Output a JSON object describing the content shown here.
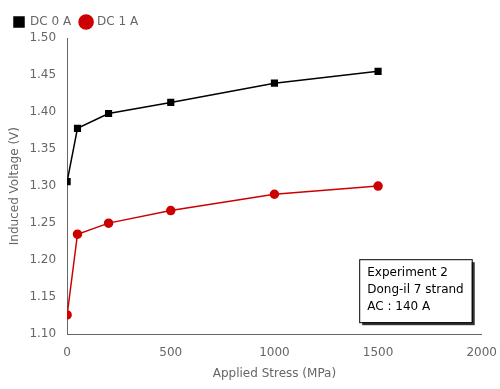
{
  "chart_data": {
    "type": "line",
    "x_label": "Applied Stress (MPa)",
    "y_label": "Induced Voltage (V)",
    "x": [
      0,
      50,
      200,
      500,
      1000,
      1500
    ],
    "series": [
      {
        "name": "DC 0 A",
        "color": "#000000",
        "marker": "square",
        "values": [
          1.306,
          1.378,
          1.398,
          1.413,
          1.439,
          1.455
        ]
      },
      {
        "name": "DC 1 A",
        "color": "#cc0000",
        "marker": "circle",
        "values": [
          1.126,
          1.235,
          1.25,
          1.267,
          1.289,
          1.3
        ]
      }
    ],
    "xlim": [
      0,
      2000
    ],
    "xticks": [
      0,
      500,
      1000,
      1500,
      2000
    ],
    "ylim": [
      1.1,
      1.5
    ],
    "yticks": [
      {
        "value": 1.1,
        "label": "1.10"
      },
      1.15,
      {
        "value": 1.2,
        "label": "1.20"
      },
      1.25,
      {
        "value": 1.3,
        "label": "1.30"
      },
      1.35,
      {
        "value": 1.4,
        "label": "1.40"
      },
      1.45,
      {
        "value": 1.5,
        "label": "1.50"
      }
    ],
    "legend": "upper left",
    "grid": false,
    "annotation": "Experiment 2\nDong-il 7 strand\nAC : 140 A"
  }
}
